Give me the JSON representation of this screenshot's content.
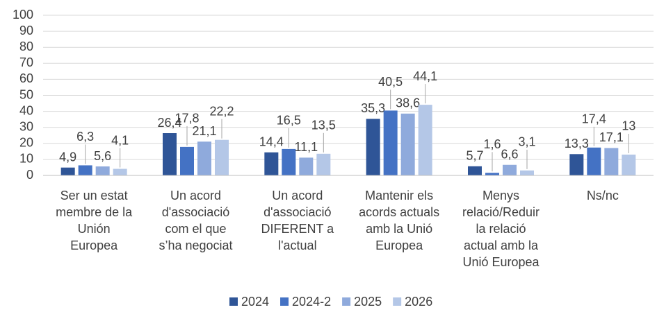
{
  "chart_data": {
    "type": "bar",
    "categories": [
      [
        "Ser un estat",
        "membre de la",
        "Unión",
        "Europea"
      ],
      [
        "Un acord",
        "d'associació",
        "com el que",
        "s’ha negociat"
      ],
      [
        "Un acord",
        "d'associació",
        "DIFERENT a",
        "l'actual"
      ],
      [
        "Mantenir els",
        "acords actuals",
        "amb la Unió",
        "Europea"
      ],
      [
        "Menys",
        "relació/Reduir",
        "la relació",
        "actual amb la",
        "Unió Europea"
      ],
      [
        "Ns/nc"
      ]
    ],
    "series": [
      {
        "name": "2024",
        "color": "#2f5597",
        "values": [
          4.9,
          26.4,
          14.4,
          35.3,
          5.7,
          13.3
        ],
        "value_labels": [
          "4,9",
          "26,4",
          "14,4",
          "35,3",
          "5,7",
          "13,3"
        ]
      },
      {
        "name": "2024-2",
        "color": "#4472c4",
        "values": [
          6.3,
          17.8,
          16.5,
          40.5,
          1.6,
          17.4
        ],
        "value_labels": [
          "6,3",
          "17,8",
          "16,5",
          "40,5",
          "1,6",
          "17,4"
        ]
      },
      {
        "name": "2025",
        "color": "#8faadc",
        "values": [
          5.6,
          21.1,
          11.1,
          38.6,
          6.6,
          17.1
        ],
        "value_labels": [
          "5,6",
          "21,1",
          "11,1",
          "38,6",
          "6,6",
          "17,1"
        ]
      },
      {
        "name": "2026",
        "color": "#b4c7e7",
        "values": [
          4.1,
          22.2,
          13.5,
          44.1,
          3.1,
          13
        ],
        "value_labels": [
          "4,1",
          "22,2",
          "13,5",
          "44,1",
          "3,1",
          "13"
        ]
      }
    ],
    "ylim": [
      0,
      100
    ],
    "yticks": [
      0,
      10,
      20,
      30,
      40,
      50,
      60,
      70,
      80,
      90,
      100
    ],
    "grid": true,
    "legend": "bottom"
  }
}
